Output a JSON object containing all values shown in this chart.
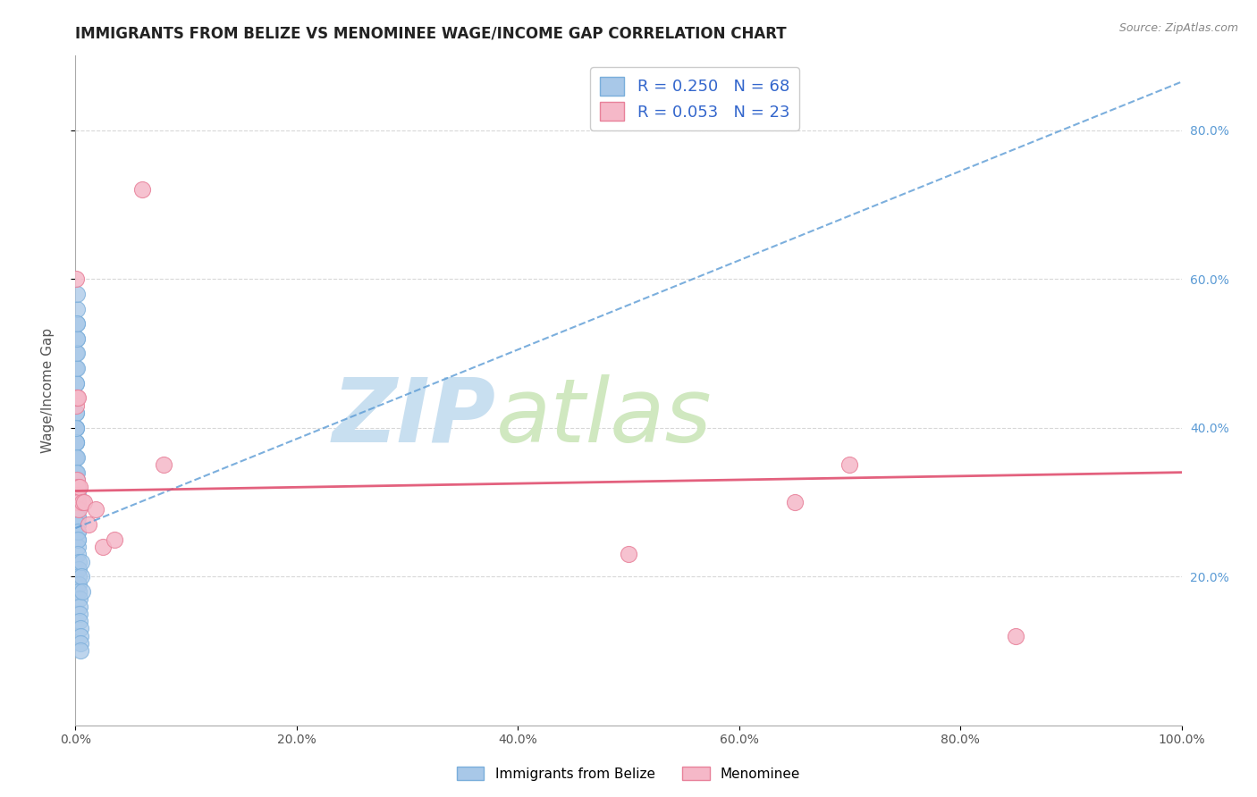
{
  "title": "IMMIGRANTS FROM BELIZE VS MENOMINEE WAGE/INCOME GAP CORRELATION CHART",
  "source": "Source: ZipAtlas.com",
  "ylabel": "Wage/Income Gap",
  "background_color": "#ffffff",
  "blue_R": 0.25,
  "blue_N": 68,
  "pink_R": 0.053,
  "pink_N": 23,
  "blue_scatter_x": [
    0.0002,
    0.0002,
    0.0003,
    0.0003,
    0.0003,
    0.0004,
    0.0004,
    0.0004,
    0.0005,
    0.0005,
    0.0005,
    0.0006,
    0.0006,
    0.0007,
    0.0007,
    0.0007,
    0.0008,
    0.0008,
    0.0008,
    0.0009,
    0.0009,
    0.001,
    0.001,
    0.001,
    0.0011,
    0.0011,
    0.0012,
    0.0012,
    0.0013,
    0.0013,
    0.0014,
    0.0014,
    0.0015,
    0.0015,
    0.0015,
    0.0016,
    0.0016,
    0.0017,
    0.0017,
    0.0018,
    0.0018,
    0.0019,
    0.0019,
    0.002,
    0.002,
    0.0021,
    0.0021,
    0.0022,
    0.0022,
    0.0023,
    0.0024,
    0.0025,
    0.0026,
    0.0027,
    0.0028,
    0.003,
    0.0032,
    0.0034,
    0.0036,
    0.0038,
    0.004,
    0.0042,
    0.0044,
    0.0046,
    0.0048,
    0.005,
    0.0055,
    0.006
  ],
  "blue_scatter_y": [
    0.36,
    0.32,
    0.38,
    0.34,
    0.3,
    0.4,
    0.36,
    0.32,
    0.42,
    0.38,
    0.34,
    0.44,
    0.4,
    0.46,
    0.42,
    0.38,
    0.48,
    0.44,
    0.4,
    0.5,
    0.46,
    0.52,
    0.48,
    0.44,
    0.54,
    0.5,
    0.56,
    0.52,
    0.58,
    0.54,
    0.36,
    0.32,
    0.34,
    0.31,
    0.28,
    0.33,
    0.3,
    0.32,
    0.29,
    0.31,
    0.28,
    0.3,
    0.27,
    0.29,
    0.26,
    0.28,
    0.25,
    0.27,
    0.24,
    0.26,
    0.25,
    0.23,
    0.22,
    0.21,
    0.2,
    0.19,
    0.18,
    0.17,
    0.16,
    0.15,
    0.14,
    0.13,
    0.12,
    0.11,
    0.1,
    0.22,
    0.2,
    0.18
  ],
  "pink_scatter_x": [
    0.0003,
    0.0005,
    0.0008,
    0.001,
    0.0012,
    0.0015,
    0.0018,
    0.002,
    0.0025,
    0.003,
    0.004,
    0.006,
    0.008,
    0.012,
    0.018,
    0.025,
    0.035,
    0.06,
    0.08,
    0.5,
    0.65,
    0.7,
    0.85
  ],
  "pink_scatter_y": [
    0.6,
    0.43,
    0.44,
    0.33,
    0.44,
    0.31,
    0.32,
    0.3,
    0.44,
    0.29,
    0.32,
    0.3,
    0.3,
    0.27,
    0.29,
    0.24,
    0.25,
    0.72,
    0.35,
    0.23,
    0.3,
    0.35,
    0.12
  ],
  "blue_trendline_x": [
    0.0,
    1.0
  ],
  "blue_trendline_y_start": 0.265,
  "blue_trendline_slope": 0.6,
  "pink_line_x": [
    0.0,
    1.0
  ],
  "pink_line_y_intercept": 0.315,
  "pink_line_slope": 0.025,
  "xlim": [
    0.0,
    1.0
  ],
  "ylim": [
    0.0,
    0.9
  ],
  "xticks": [
    0.0,
    0.2,
    0.4,
    0.6,
    0.8,
    1.0
  ],
  "yticks_right": [
    0.2,
    0.4,
    0.6,
    0.8
  ],
  "ytick_labels_right": [
    "20.0%",
    "40.0%",
    "60.0%",
    "80.0%"
  ],
  "xtick_labels": [
    "0.0%",
    "20.0%",
    "40.0%",
    "60.0%",
    "80.0%",
    "100.0%"
  ],
  "blue_color": "#a8c8e8",
  "blue_edge_color": "#7aaedb",
  "blue_line_color": "#5b9bd5",
  "pink_color": "#f5b8c8",
  "pink_edge_color": "#e8819a",
  "pink_line_color": "#e05070",
  "watermark_zip_color": "#c8dff0",
  "watermark_atlas_color": "#d0e8c0",
  "grid_color": "#d8d8d8",
  "title_color": "#222222",
  "source_color": "#888888",
  "legend_text_color": "#3366cc",
  "legend_label1": "Immigrants from Belize",
  "legend_label2": "Menominee",
  "marker_size": 13
}
